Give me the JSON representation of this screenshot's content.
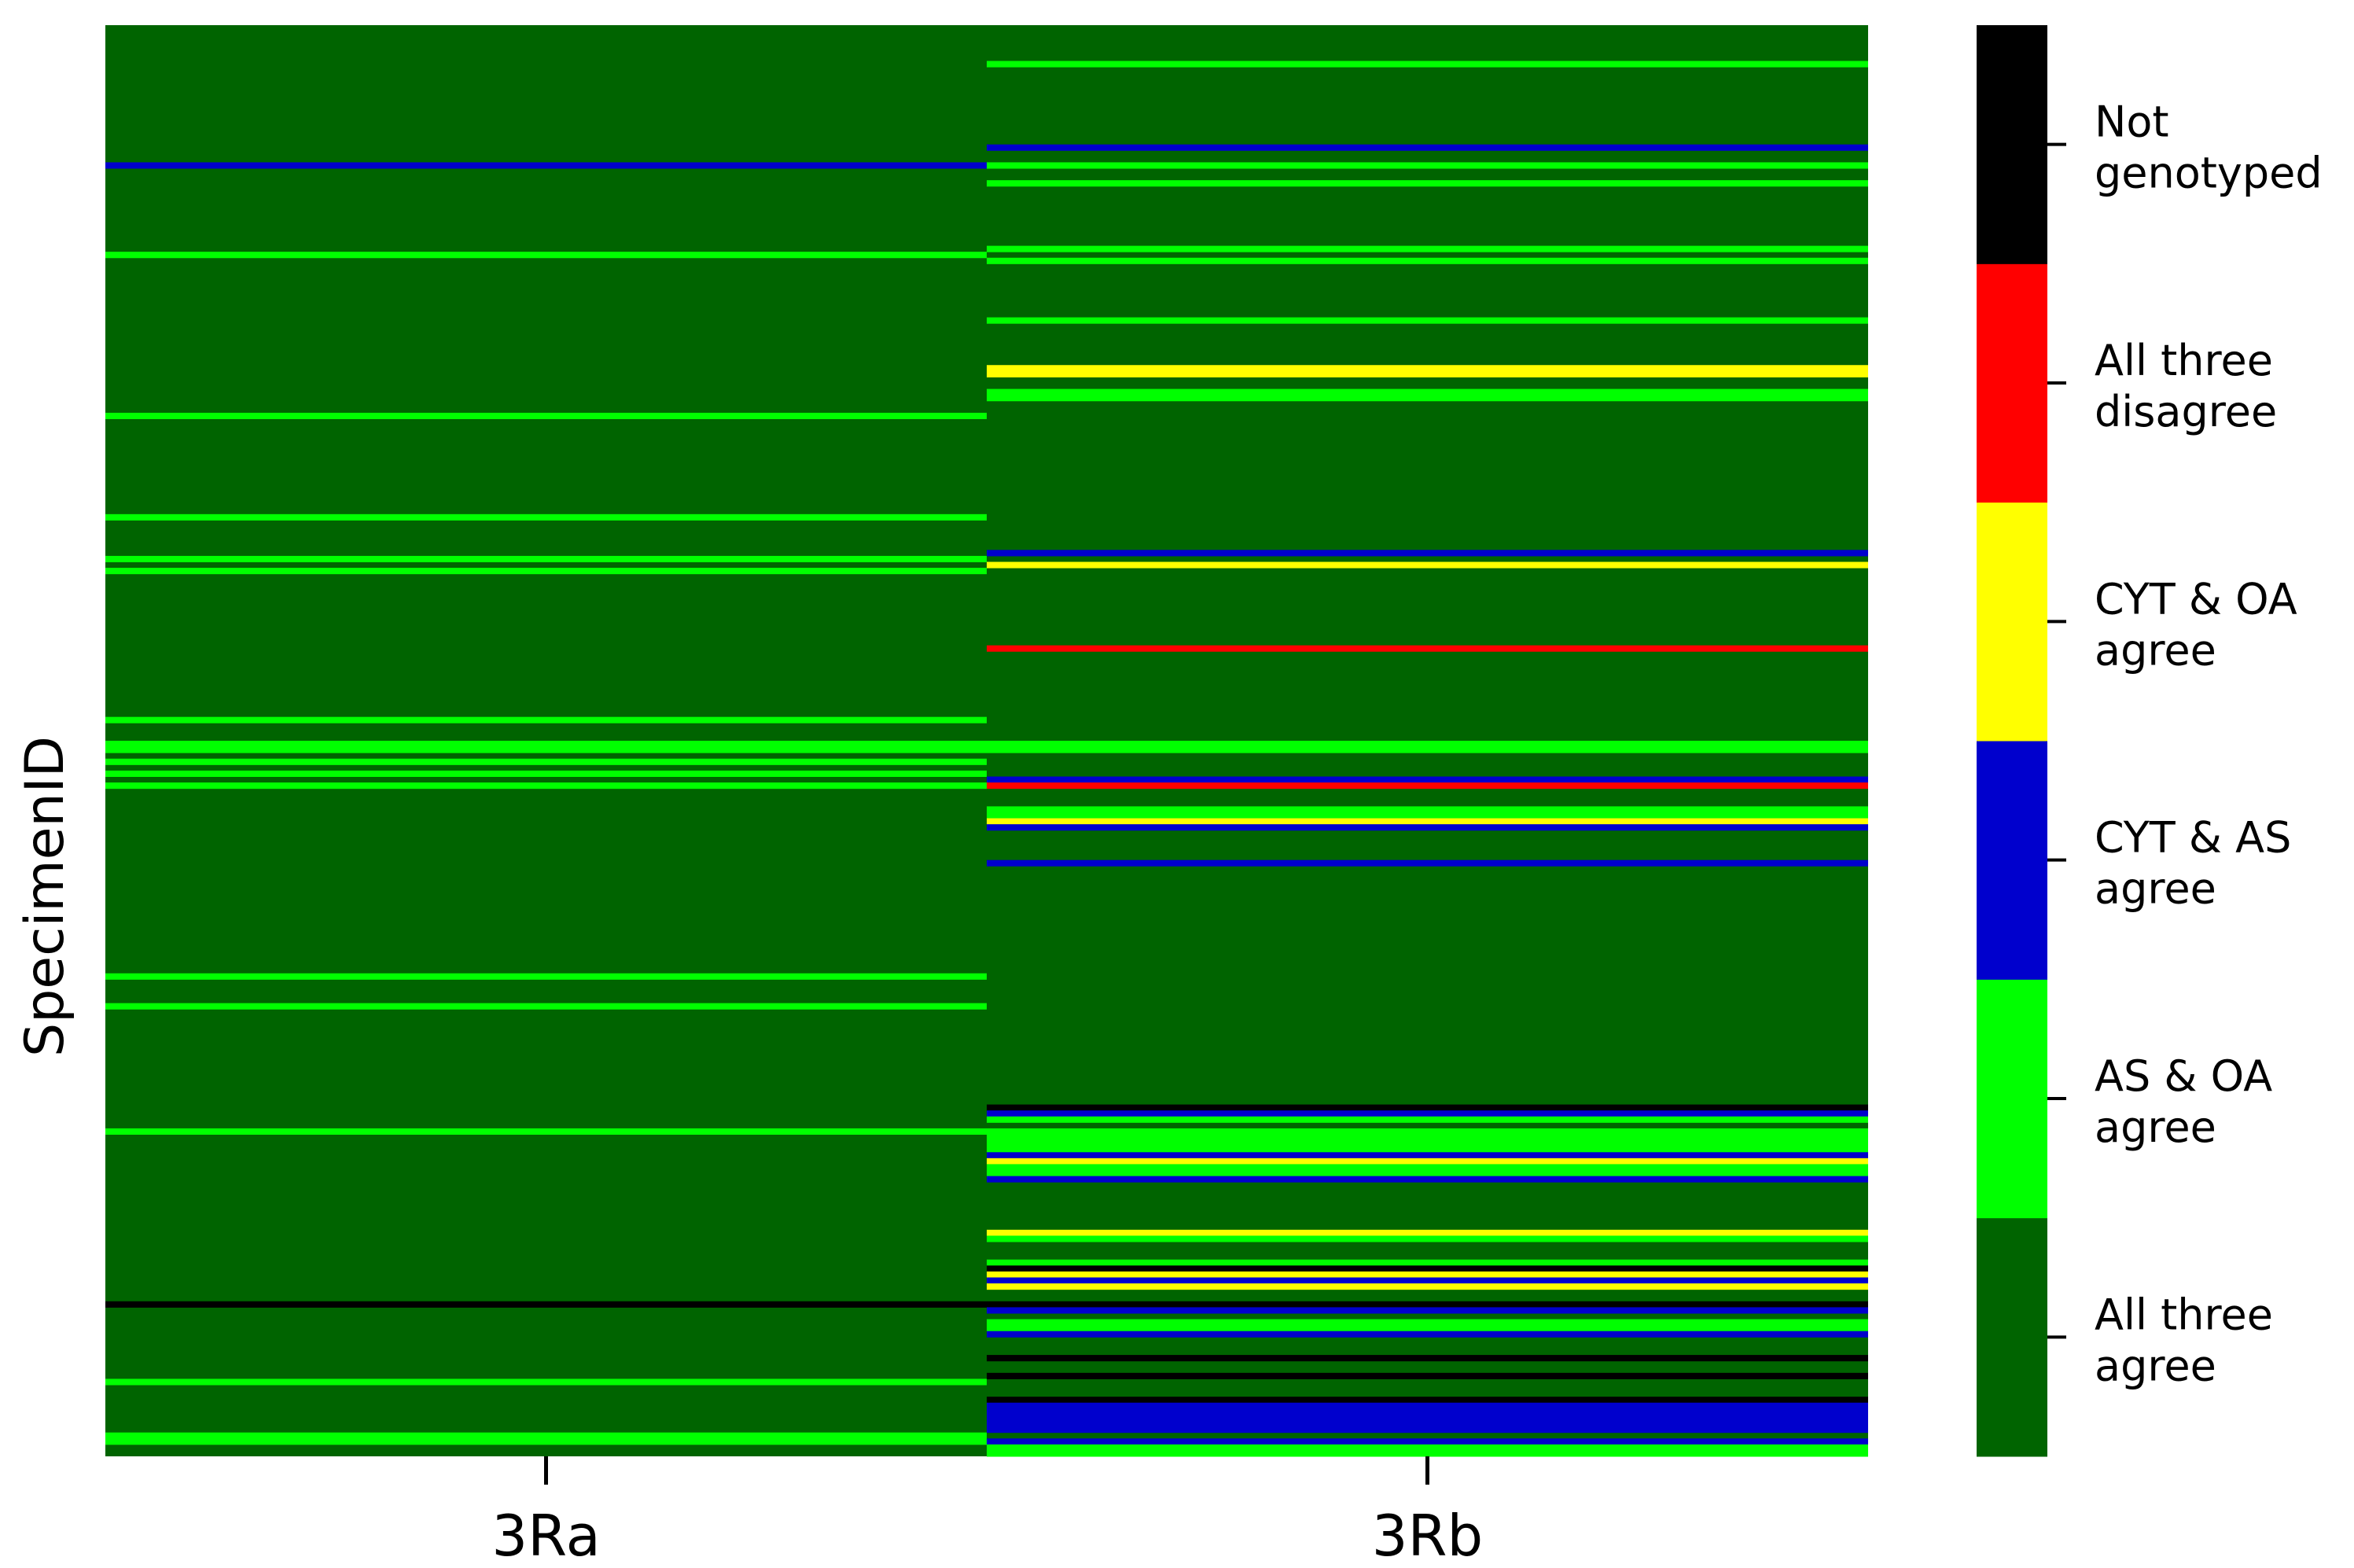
{
  "chart_data": {
    "type": "heatmap",
    "title": "",
    "xlabel": "",
    "ylabel": "SpecimenID",
    "columns": [
      "3Ra",
      "3Rb"
    ],
    "rows_estimated": 240,
    "background_category": "All three agree",
    "categories": [
      {
        "code": 0,
        "label_line1": "All three",
        "label_line2": "agree",
        "color": "#006400"
      },
      {
        "code": 1,
        "label_line1": "AS & OA",
        "label_line2": "agree",
        "color": "#00ff00"
      },
      {
        "code": 2,
        "label_line1": "CYT & AS",
        "label_line2": "agree",
        "color": "#0000cd"
      },
      {
        "code": 3,
        "label_line1": "CYT & OA",
        "label_line2": "agree",
        "color": "#ffff00"
      },
      {
        "code": 4,
        "label_line1": "All three",
        "label_line2": "disagree",
        "color": "#ff0000"
      },
      {
        "code": 5,
        "label_line1": "Not",
        "label_line2": "genotyped",
        "color": "#000000"
      }
    ],
    "cells": [
      {
        "column": "3Ra",
        "rows": [
          [
            23,
            2
          ],
          [
            38,
            1
          ],
          [
            65,
            1
          ],
          [
            82,
            1
          ],
          [
            89,
            1
          ],
          [
            91,
            1
          ],
          [
            116,
            1
          ],
          [
            120,
            1
          ],
          [
            121,
            1
          ],
          [
            123,
            1
          ],
          [
            125,
            1
          ],
          [
            127,
            1
          ],
          [
            159,
            1
          ],
          [
            164,
            1
          ],
          [
            185,
            1
          ],
          [
            214,
            5
          ],
          [
            227,
            1
          ],
          [
            236,
            1
          ],
          [
            237,
            1
          ]
        ]
      },
      {
        "column": "3Rb",
        "rows": [
          [
            6,
            1
          ],
          [
            20,
            2
          ],
          [
            23,
            1
          ],
          [
            26,
            1
          ],
          [
            37,
            1
          ],
          [
            39,
            1
          ],
          [
            49,
            1
          ],
          [
            57,
            3
          ],
          [
            58,
            3
          ],
          [
            61,
            1
          ],
          [
            62,
            1
          ],
          [
            88,
            2
          ],
          [
            90,
            3
          ],
          [
            104,
            4
          ],
          [
            120,
            1
          ],
          [
            121,
            1
          ],
          [
            126,
            2
          ],
          [
            127,
            4
          ],
          [
            131,
            1
          ],
          [
            132,
            1
          ],
          [
            133,
            3
          ],
          [
            134,
            2
          ],
          [
            140,
            2
          ],
          [
            181,
            5
          ],
          [
            182,
            2
          ],
          [
            183,
            1
          ],
          [
            185,
            1
          ],
          [
            186,
            1
          ],
          [
            187,
            1
          ],
          [
            188,
            1
          ],
          [
            189,
            2
          ],
          [
            190,
            3
          ],
          [
            191,
            1
          ],
          [
            192,
            1
          ],
          [
            193,
            2
          ],
          [
            202,
            3
          ],
          [
            203,
            1
          ],
          [
            207,
            1
          ],
          [
            208,
            5
          ],
          [
            209,
            3
          ],
          [
            210,
            2
          ],
          [
            211,
            3
          ],
          [
            214,
            5
          ],
          [
            215,
            2
          ],
          [
            217,
            1
          ],
          [
            218,
            1
          ],
          [
            219,
            2
          ],
          [
            223,
            5
          ],
          [
            226,
            5
          ],
          [
            230,
            5
          ],
          [
            231,
            2
          ],
          [
            232,
            2
          ],
          [
            233,
            2
          ],
          [
            234,
            2
          ],
          [
            235,
            2
          ],
          [
            237,
            2
          ],
          [
            238,
            1
          ],
          [
            239,
            1
          ]
        ]
      }
    ],
    "colorbar_ticks": [
      0,
      1,
      2,
      3,
      4,
      5
    ]
  }
}
